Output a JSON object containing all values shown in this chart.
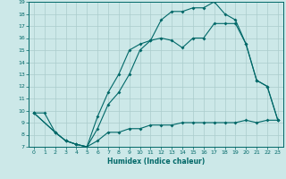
{
  "xlabel": "Humidex (Indice chaleur)",
  "ylabel": "",
  "xlim": [
    -0.5,
    23.5
  ],
  "ylim": [
    7,
    19
  ],
  "yticks": [
    7,
    8,
    9,
    10,
    11,
    12,
    13,
    14,
    15,
    16,
    17,
    18,
    19
  ],
  "xticks": [
    0,
    1,
    2,
    3,
    4,
    5,
    6,
    7,
    8,
    9,
    10,
    11,
    12,
    13,
    14,
    15,
    16,
    17,
    18,
    19,
    20,
    21,
    22,
    23
  ],
  "bg_color": "#cce8e8",
  "line_color": "#006868",
  "grid_color": "#aacccc",
  "line1_x": [
    0,
    1,
    2,
    3,
    4,
    5,
    6,
    7,
    8,
    9,
    10,
    11,
    12,
    13,
    14,
    15,
    16,
    17,
    18,
    19,
    20,
    21,
    22,
    23
  ],
  "line1_y": [
    9.8,
    9.8,
    8.2,
    7.5,
    7.2,
    7.0,
    7.5,
    8.2,
    8.2,
    8.5,
    8.5,
    8.8,
    8.8,
    8.8,
    9.0,
    9.0,
    9.0,
    9.0,
    9.0,
    9.0,
    9.2,
    9.0,
    9.2,
    9.2
  ],
  "line2_x": [
    0,
    2,
    3,
    4,
    5,
    6,
    7,
    8,
    9,
    10,
    11,
    12,
    13,
    14,
    15,
    16,
    17,
    18,
    19,
    20,
    21,
    22,
    23
  ],
  "line2_y": [
    9.8,
    8.2,
    7.5,
    7.2,
    7.0,
    8.5,
    10.5,
    11.5,
    13.0,
    15.0,
    15.8,
    16.0,
    15.8,
    15.2,
    16.0,
    16.0,
    17.2,
    17.2,
    17.2,
    15.5,
    12.5,
    12.0,
    9.2
  ],
  "line3_x": [
    0,
    2,
    3,
    4,
    5,
    6,
    7,
    8,
    9,
    10,
    11,
    12,
    13,
    14,
    15,
    16,
    17,
    18,
    19,
    20,
    21,
    22,
    23
  ],
  "line3_y": [
    9.8,
    8.2,
    7.5,
    7.2,
    7.0,
    9.5,
    11.5,
    13.0,
    15.0,
    15.5,
    15.8,
    17.5,
    18.2,
    18.2,
    18.5,
    18.5,
    19.0,
    18.0,
    17.5,
    15.5,
    12.5,
    12.0,
    9.2
  ]
}
